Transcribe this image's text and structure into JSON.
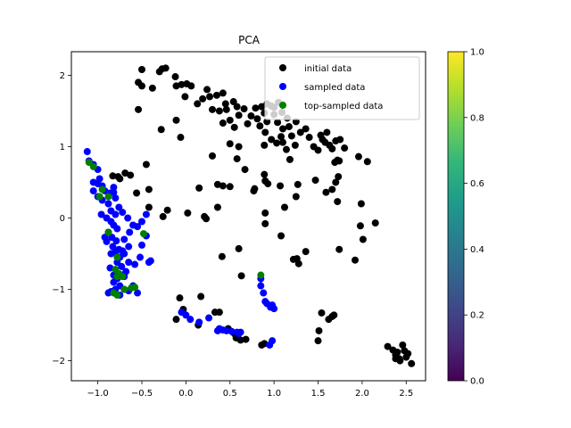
{
  "chart_data": {
    "type": "scatter",
    "title": "PCA",
    "xlabel": "",
    "ylabel": "",
    "xlim": [
      -1.3,
      2.72
    ],
    "ylim": [
      -2.28,
      2.33
    ],
    "x_ticks": [
      -1.0,
      -0.5,
      0.0,
      0.5,
      1.0,
      1.5,
      2.0,
      2.5
    ],
    "x_tick_labels": [
      "−1.0",
      "−0.5",
      "0.0",
      "0.5",
      "1.0",
      "1.5",
      "2.0",
      "2.5"
    ],
    "y_ticks": [
      -2,
      -1,
      0,
      1,
      2
    ],
    "y_tick_labels": [
      "−2",
      "−1",
      "0",
      "1",
      "2"
    ],
    "grid": false,
    "legend_position": "top-right",
    "colorbar": {
      "range": [
        0.0,
        1.0
      ],
      "ticks": [
        0.0,
        0.2,
        0.4,
        0.6,
        0.8,
        1.0
      ],
      "tick_labels": [
        "0.0",
        "0.2",
        "0.4",
        "0.6",
        "0.8",
        "1.0"
      ],
      "colormap": [
        "#440154",
        "#482878",
        "#3e4989",
        "#31688e",
        "#26828e",
        "#1f9e89",
        "#35b779",
        "#6ece58",
        "#b5de2b",
        "#fde725"
      ]
    },
    "series": [
      {
        "name": "initial data",
        "color": "#000000",
        "points": [
          [
            -0.5,
            2.08
          ],
          [
            -0.54,
            1.9
          ],
          [
            -0.5,
            1.85
          ],
          [
            -0.54,
            1.52
          ],
          [
            -0.38,
            1.82
          ],
          [
            -0.3,
            2.05
          ],
          [
            -0.27,
            2.09
          ],
          [
            -0.23,
            2.1
          ],
          [
            -0.11,
            1.85
          ],
          [
            -0.05,
            1.87
          ],
          [
            -0.12,
            1.98
          ],
          [
            0.01,
            1.88
          ],
          [
            0.06,
            1.85
          ],
          [
            -0.01,
            1.7
          ],
          [
            -0.11,
            1.37
          ],
          [
            -0.28,
            1.24
          ],
          [
            -0.06,
            1.13
          ],
          [
            0.13,
            1.6
          ],
          [
            0.19,
            1.67
          ],
          [
            0.24,
            1.8
          ],
          [
            0.27,
            1.7
          ],
          [
            0.35,
            1.72
          ],
          [
            0.3,
            1.52
          ],
          [
            0.38,
            1.5
          ],
          [
            0.42,
            1.33
          ],
          [
            0.42,
            1.75
          ],
          [
            0.45,
            1.6
          ],
          [
            0.46,
            1.52
          ],
          [
            0.54,
            1.63
          ],
          [
            0.58,
            1.56
          ],
          [
            0.5,
            1.37
          ],
          [
            0.55,
            1.27
          ],
          [
            0.6,
            1.44
          ],
          [
            0.66,
            1.53
          ],
          [
            0.7,
            1.32
          ],
          [
            0.74,
            1.43
          ],
          [
            0.79,
            1.54
          ],
          [
            0.86,
            1.56
          ],
          [
            0.89,
            1.47
          ],
          [
            0.92,
            1.6
          ],
          [
            0.97,
            1.57
          ],
          [
            1.0,
            1.55
          ],
          [
            1.05,
            1.62
          ],
          [
            1.09,
            1.48
          ],
          [
            0.81,
            1.39
          ],
          [
            0.84,
            1.29
          ],
          [
            0.9,
            1.2
          ],
          [
            0.92,
            1.35
          ],
          [
            1.0,
            1.45
          ],
          [
            1.04,
            1.34
          ],
          [
            1.1,
            1.25
          ],
          [
            1.15,
            1.4
          ],
          [
            1.17,
            1.28
          ],
          [
            1.2,
            1.15
          ],
          [
            1.25,
            1.35
          ],
          [
            1.3,
            1.2
          ],
          [
            1.36,
            1.25
          ],
          [
            1.4,
            1.13
          ],
          [
            1.45,
            1.0
          ],
          [
            1.5,
            0.95
          ],
          [
            1.55,
            1.1
          ],
          [
            1.6,
            1.2
          ],
          [
            1.63,
            1.02
          ],
          [
            1.66,
            0.97
          ],
          [
            1.7,
            1.08
          ],
          [
            1.75,
            1.1
          ],
          [
            1.8,
            0.98
          ],
          [
            1.53,
            1.16
          ],
          [
            1.58,
            1.06
          ],
          [
            1.1,
            1.06
          ],
          [
            1.14,
            0.96
          ],
          [
            1.18,
            0.82
          ],
          [
            1.03,
            1.05
          ],
          [
            0.97,
            1.1
          ],
          [
            1.08,
            1.14
          ],
          [
            1.24,
            1.02
          ],
          [
            0.89,
            1.02
          ],
          [
            0.6,
            1.0
          ],
          [
            0.5,
            1.04
          ],
          [
            0.58,
            0.83
          ],
          [
            0.3,
            0.87
          ],
          [
            0.67,
            0.68
          ],
          [
            0.15,
            0.42
          ],
          [
            0.36,
            0.47
          ],
          [
            0.42,
            0.45
          ],
          [
            0.5,
            0.44
          ],
          [
            0.36,
            0.15
          ],
          [
            0.21,
            0.02
          ],
          [
            0.89,
            0.61
          ],
          [
            0.9,
            0.52
          ],
          [
            0.93,
            0.48
          ],
          [
            0.78,
            0.41
          ],
          [
            0.77,
            0.38
          ],
          [
            1.07,
            0.45
          ],
          [
            0.9,
            0.07
          ],
          [
            1.12,
            0.15
          ],
          [
            1.27,
            0.47
          ],
          [
            1.25,
            0.3
          ],
          [
            1.47,
            0.53
          ],
          [
            1.59,
            0.36
          ],
          [
            1.7,
            0.5
          ],
          [
            1.73,
            0.58
          ],
          [
            1.74,
            0.8
          ],
          [
            1.69,
            0.78
          ],
          [
            1.96,
            0.86
          ],
          [
            2.06,
            0.79
          ],
          [
            1.72,
            0.81
          ],
          [
            1.66,
            0.4
          ],
          [
            1.72,
            0.23
          ],
          [
            1.99,
            0.2
          ],
          [
            1.98,
            -0.11
          ],
          [
            2.01,
            -0.3
          ],
          [
            2.15,
            -0.07
          ],
          [
            1.92,
            -0.59
          ],
          [
            1.74,
            -0.44
          ],
          [
            1.36,
            -0.47
          ],
          [
            1.26,
            -0.57
          ],
          [
            1.22,
            -0.58
          ],
          [
            1.28,
            -0.64
          ],
          [
            1.08,
            -0.25
          ],
          [
            0.9,
            -0.08
          ],
          [
            0.6,
            -0.43
          ],
          [
            0.63,
            -0.81
          ],
          [
            0.41,
            -0.54
          ],
          [
            0.23,
            -0.01
          ],
          [
            0.02,
            0.07
          ],
          [
            -0.26,
            0.02
          ],
          [
            -0.42,
            0.15
          ],
          [
            -0.42,
            0.4
          ],
          [
            -0.56,
            0.35
          ],
          [
            -0.45,
            0.75
          ],
          [
            -0.69,
            0.63
          ],
          [
            -0.77,
            0.58
          ],
          [
            -0.83,
            0.59
          ],
          [
            -0.75,
            0.55
          ],
          [
            -0.63,
            0.6
          ],
          [
            -0.21,
            0.11
          ],
          [
            -0.07,
            -1.12
          ],
          [
            0.17,
            -1.1
          ],
          [
            -0.03,
            -1.28
          ],
          [
            -0.11,
            -1.42
          ],
          [
            0.14,
            -1.5
          ],
          [
            0.33,
            -1.32
          ],
          [
            0.38,
            -1.32
          ],
          [
            0.48,
            -1.55
          ],
          [
            0.55,
            -1.62
          ],
          [
            0.57,
            -1.68
          ],
          [
            0.62,
            -1.71
          ],
          [
            0.68,
            -1.7
          ],
          [
            0.86,
            -1.78
          ],
          [
            0.89,
            -1.76
          ],
          [
            1.51,
            -1.58
          ],
          [
            1.5,
            -1.72
          ],
          [
            1.54,
            -1.33
          ],
          [
            1.62,
            -1.42
          ],
          [
            1.66,
            -1.38
          ],
          [
            1.68,
            -1.36
          ],
          [
            2.29,
            -1.8
          ],
          [
            2.35,
            -1.85
          ],
          [
            2.38,
            -1.92
          ],
          [
            2.42,
            -1.97
          ],
          [
            2.46,
            -1.78
          ],
          [
            2.48,
            -1.86
          ],
          [
            2.5,
            -1.95
          ],
          [
            2.43,
            -2.0
          ],
          [
            2.52,
            -1.9
          ],
          [
            2.56,
            -2.04
          ],
          [
            2.38,
            -1.97
          ],
          [
            2.4,
            -1.88
          ]
        ]
      },
      {
        "name": "sampled data",
        "color": "#0000ff",
        "points": [
          [
            -1.12,
            0.93
          ],
          [
            -1.1,
            0.8
          ],
          [
            -1.05,
            0.75
          ],
          [
            -1.0,
            0.68
          ],
          [
            -0.98,
            0.55
          ],
          [
            -1.05,
            0.5
          ],
          [
            -0.95,
            0.45
          ],
          [
            -0.92,
            0.38
          ],
          [
            -1.0,
            0.3
          ],
          [
            -0.95,
            0.25
          ],
          [
            -0.88,
            0.2
          ],
          [
            -0.82,
            0.36
          ],
          [
            -0.8,
            0.28
          ],
          [
            -0.85,
            0.1
          ],
          [
            -0.8,
            0.05
          ],
          [
            -0.9,
            0.0
          ],
          [
            -0.85,
            -0.05
          ],
          [
            -0.82,
            -0.1
          ],
          [
            -0.78,
            -0.15
          ],
          [
            -0.88,
            -0.2
          ],
          [
            -0.92,
            -0.27
          ],
          [
            -0.84,
            -0.27
          ],
          [
            -0.79,
            -0.32
          ],
          [
            -0.83,
            -0.4
          ],
          [
            -0.76,
            -0.44
          ],
          [
            -0.72,
            -0.46
          ],
          [
            -0.8,
            -0.48
          ],
          [
            -0.85,
            -0.5
          ],
          [
            -0.75,
            -0.55
          ],
          [
            -0.78,
            -0.62
          ],
          [
            -0.73,
            -0.68
          ],
          [
            -0.65,
            -0.62
          ],
          [
            -0.68,
            -0.75
          ],
          [
            -0.72,
            -0.8
          ],
          [
            -0.78,
            -0.85
          ],
          [
            -0.82,
            -0.9
          ],
          [
            -0.75,
            -0.95
          ],
          [
            -0.7,
            -1.0
          ],
          [
            -0.65,
            -1.02
          ],
          [
            -0.8,
            -1.0
          ],
          [
            -0.85,
            -1.03
          ],
          [
            -0.88,
            -1.05
          ],
          [
            -0.75,
            -1.08
          ],
          [
            -0.6,
            -0.95
          ],
          [
            -0.55,
            -1.05
          ],
          [
            -0.58,
            -0.65
          ],
          [
            -0.52,
            -0.55
          ],
          [
            -0.5,
            -0.38
          ],
          [
            -0.45,
            -0.25
          ],
          [
            -0.5,
            -0.05
          ],
          [
            -0.45,
            0.05
          ],
          [
            -0.55,
            -0.12
          ],
          [
            -0.4,
            -0.6
          ],
          [
            -0.42,
            -0.62
          ],
          [
            -0.64,
            -0.2
          ],
          [
            -0.7,
            -0.3
          ],
          [
            -0.6,
            -0.1
          ],
          [
            -0.66,
            0.0
          ],
          [
            -0.72,
            0.08
          ],
          [
            -0.76,
            0.15
          ],
          [
            -0.7,
            -0.5
          ],
          [
            -0.65,
            -0.4
          ],
          [
            -0.86,
            0.35
          ],
          [
            -0.82,
            0.43
          ],
          [
            -1.05,
            0.38
          ],
          [
            -1.0,
            0.48
          ],
          [
            -0.96,
            0.05
          ],
          [
            -0.9,
            -0.33
          ],
          [
            -0.86,
            -0.7
          ],
          [
            -0.7,
            -0.82
          ],
          [
            -0.82,
            -0.8
          ],
          [
            0.85,
            -0.85
          ],
          [
            0.85,
            -0.95
          ],
          [
            0.88,
            -1.05
          ],
          [
            0.9,
            -1.17
          ],
          [
            0.92,
            -1.2
          ],
          [
            0.96,
            -1.25
          ],
          [
            0.98,
            -1.22
          ],
          [
            1.0,
            -1.27
          ],
          [
            0.95,
            -1.78
          ],
          [
            0.98,
            -1.72
          ],
          [
            -0.05,
            -1.32
          ],
          [
            0.0,
            -1.36
          ],
          [
            0.05,
            -1.42
          ],
          [
            0.15,
            -1.46
          ],
          [
            0.26,
            -1.4
          ],
          [
            0.36,
            -1.58
          ],
          [
            0.38,
            -1.55
          ],
          [
            0.42,
            -1.57
          ],
          [
            0.46,
            -1.58
          ],
          [
            0.52,
            -1.59
          ],
          [
            0.58,
            -1.6
          ],
          [
            0.6,
            -1.62
          ],
          [
            0.62,
            -1.6
          ]
        ]
      },
      {
        "name": "top-sampled data",
        "color": "#008000",
        "points": [
          [
            -1.1,
            0.78
          ],
          [
            -1.05,
            0.72
          ],
          [
            -0.95,
            0.4
          ],
          [
            -0.98,
            0.3
          ],
          [
            -0.88,
            0.3
          ],
          [
            -0.88,
            -0.2
          ],
          [
            -0.78,
            -0.55
          ],
          [
            -0.8,
            -0.72
          ],
          [
            -0.76,
            -0.78
          ],
          [
            -0.78,
            -0.82
          ],
          [
            -0.72,
            -0.82
          ],
          [
            -0.82,
            -1.05
          ],
          [
            -0.78,
            -1.08
          ],
          [
            -0.7,
            -1.0
          ],
          [
            -0.62,
            -0.98
          ],
          [
            -0.58,
            -0.97
          ],
          [
            -0.48,
            -0.22
          ],
          [
            0.85,
            -0.8
          ]
        ]
      }
    ]
  }
}
